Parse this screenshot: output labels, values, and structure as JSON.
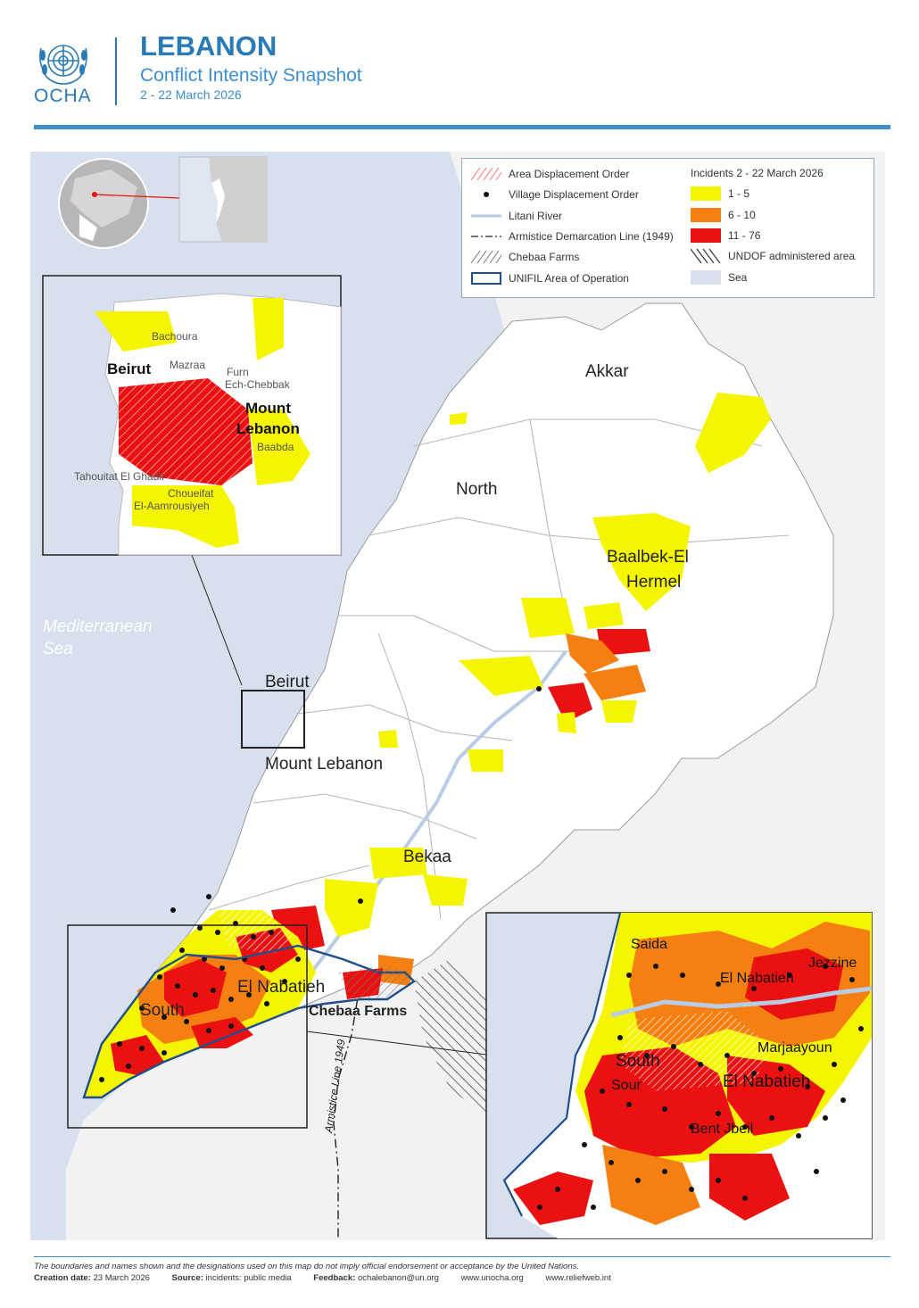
{
  "header": {
    "org": "OCHA",
    "title": "LEBANON",
    "subtitle": "Conflict Intensity Snapshot",
    "date_range": "2 - 22 March 2026"
  },
  "legend": {
    "left_items": [
      {
        "icon": "hatch-red",
        "label": "Area Displacement Order"
      },
      {
        "icon": "dot-black",
        "label": "Village Displacement Order"
      },
      {
        "icon": "line-lightblue",
        "label": "Litani River"
      },
      {
        "icon": "dashdot-line",
        "label": "Armistice Demarcation Line (1949)"
      },
      {
        "icon": "hatch-grey",
        "label": "Chebaa Farms"
      },
      {
        "icon": "outline-blue",
        "label": "UNIFIL Area of Operation"
      }
    ],
    "incidents_title": "Incidents 2 - 22 March 2026",
    "classes": [
      {
        "label": "1 - 5",
        "color": "#f5f500"
      },
      {
        "label": "6 - 10",
        "color": "#f57f11"
      },
      {
        "label": "11 - 76",
        "color": "#ec1111"
      }
    ],
    "undof_label": "UNDOF administered area",
    "sea_label": "Sea",
    "sea_color": "#d8e0ee"
  },
  "map_labels": {
    "sea": "Mediterranean",
    "sea2": "Sea",
    "akkar": "Akkar",
    "north": "North",
    "baalbek1": "Baalbek-El",
    "baalbek2": "Hermel",
    "beirut": "Beirut",
    "mount_lebanon": "Mount Lebanon",
    "bekaa": "Bekaa",
    "nabatieh": "El Nabatieh",
    "south": "South",
    "chebaa": "Chebaa Farms",
    "armistice": "Armistice Line 1949"
  },
  "inset_beirut": {
    "bachoura": "Bachoura",
    "beirut": "Beirut",
    "mazraa": "Mazraa",
    "furn1": "Furn",
    "furn2": "Ech-Chebbak",
    "mount1": "Mount",
    "mount2": "Lebanon",
    "baabda": "Baabda",
    "tahouitat": "Tahouitat El Ghadir",
    "choueifat1": "Choueifat",
    "choueifat2": "El-Aamrousiyeh"
  },
  "inset_south": {
    "saida": "Saida",
    "jezzine": "Jezzine",
    "nabatieh1": "El Nabatieh",
    "south": "South",
    "marjaayoun": "Marjaayoun",
    "sour": "Sour",
    "nabatieh2": "El Nabatieh",
    "bent_jbeil": "Bent Jbeil"
  },
  "footer": {
    "disclaimer": "The boundaries and names shown and the designations used on this map do not imply official endorsement or acceptance by the United Nations.",
    "creation_label": "Creation date:",
    "creation_value": "23 March 2026",
    "source_label": "Source:",
    "source_value": "incidents: public media",
    "feedback_label": "Feedback:",
    "feedback_value": "ochalebanon@un.org",
    "url1": "www.unocha.org",
    "url2": "www.reliefweb.int"
  }
}
